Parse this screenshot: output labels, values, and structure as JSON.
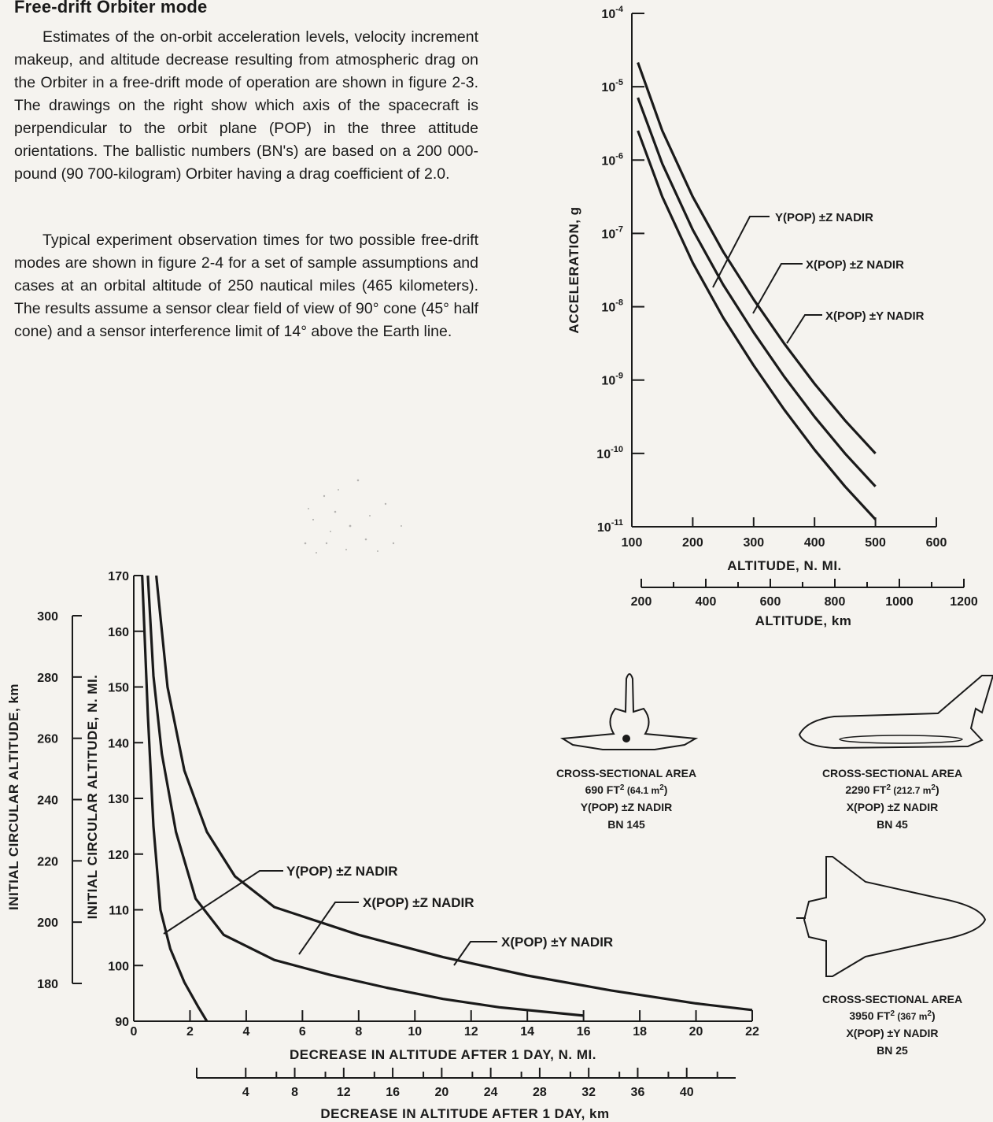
{
  "text": {
    "heading": "Free-drift Orbiter mode",
    "paragraph_1": "Estimates of the on-orbit acceleration levels, velocity increment makeup, and altitude decrease resulting from atmospheric drag on the Orbiter in a free-drift mode of operation are shown in figure 2-3. The drawings on the right show which axis of the spacecraft is perpendicular to the orbit plane (POP) in the three attitude orientations. The ballistic numbers (BN's) are based on a 200 000-pound (90 700-kilogram) Orbiter having a drag coefficient of 2.0.",
    "paragraph_2": "Typical experiment observation times for two possible free-drift modes are shown in figure 2-4 for a set of sample assumptions and cases at an orbital altitude of 250 nautical miles (465 kilometers). The results assume a sensor clear field of view of 90° cone (45° half cone) and a sensor interference limit of 14° above the Earth line."
  },
  "chart_data": [
    {
      "type": "line",
      "y_scale": "log",
      "ylabel": "ACCELERATION, g",
      "xlabel": "ALTITUDE, N. MI.",
      "x2label": "ALTITUDE, km",
      "xlim": [
        100,
        600
      ],
      "ylim_exponent": [
        -11,
        -4
      ],
      "x_ticks": [
        "100",
        "200",
        "300",
        "400",
        "500",
        "600"
      ],
      "x2_ticks": [
        "200",
        "400",
        "600",
        "800",
        "1000",
        "1200"
      ],
      "y_ticks": [
        {
          "base": "10",
          "exp": "-4"
        },
        {
          "base": "10",
          "exp": "-5"
        },
        {
          "base": "10",
          "exp": "-6"
        },
        {
          "base": "10",
          "exp": "-7"
        },
        {
          "base": "10",
          "exp": "-8"
        },
        {
          "base": "10",
          "exp": "-9"
        },
        {
          "base": "10",
          "exp": "-10"
        },
        {
          "base": "10",
          "exp": "-11"
        }
      ],
      "series": [
        {
          "name": "Y(POP) ±Z NADIR",
          "x": [
            110,
            150,
            200,
            250,
            300,
            350,
            400,
            450,
            500
          ],
          "log10_g": [
            -4.67,
            -5.6,
            -6.5,
            -7.25,
            -7.9,
            -8.5,
            -9.05,
            -9.55,
            -10.0
          ]
        },
        {
          "name": "X(POP) ±Z NADIR",
          "x": [
            110,
            150,
            200,
            250,
            300,
            350,
            400,
            450,
            500
          ],
          "log10_g": [
            -5.15,
            -6.05,
            -6.95,
            -7.7,
            -8.35,
            -8.95,
            -9.5,
            -10.0,
            -10.45
          ]
        },
        {
          "name": "X(POP) ±Y NADIR",
          "x": [
            110,
            150,
            200,
            250,
            300,
            350,
            400,
            450,
            500
          ],
          "log10_g": [
            -5.6,
            -6.5,
            -7.4,
            -8.15,
            -8.8,
            -9.4,
            -9.95,
            -10.45,
            -10.9
          ]
        }
      ]
    },
    {
      "type": "line",
      "ylabel": "INITIAL CIRCULAR ALTITUDE, N. MI.",
      "y2label": "INITIAL CIRCULAR ALTITUDE, km",
      "xlabel": "DECREASE IN ALTITUDE AFTER 1 DAY, N. MI.",
      "x2label": "DECREASE IN ALTITUDE AFTER 1 DAY, km",
      "xlim": [
        0,
        22
      ],
      "ylim": [
        90,
        170
      ],
      "x_ticks": [
        "0",
        "2",
        "4",
        "6",
        "8",
        "10",
        "12",
        "14",
        "16",
        "18",
        "20",
        "22"
      ],
      "y_ticks": [
        "90",
        "100",
        "110",
        "120",
        "130",
        "140",
        "150",
        "160",
        "170"
      ],
      "y2_ticks": [
        "180",
        "200",
        "220",
        "240",
        "260",
        "280",
        "300"
      ],
      "x2_ticks": [
        "4",
        "8",
        "12",
        "16",
        "20",
        "24",
        "28",
        "32",
        "36",
        "40"
      ],
      "series": [
        {
          "name": "X(POP) ±Y NADIR",
          "x": [
            0.8,
            1.2,
            1.8,
            2.6,
            3.6,
            5,
            8,
            11,
            14,
            17,
            20,
            22
          ],
          "y": [
            170,
            150,
            135,
            124,
            116,
            110.5,
            105.5,
            101.5,
            98.2,
            95.5,
            93.2,
            92
          ]
        },
        {
          "name": "X(POP) ±Z NADIR",
          "x": [
            0.5,
            0.7,
            1.0,
            1.5,
            2.2,
            3.2,
            5,
            7,
            9,
            11,
            13,
            16
          ],
          "y": [
            170,
            152,
            138,
            124,
            112,
            105.5,
            101,
            98.3,
            96,
            94,
            92.5,
            91
          ]
        },
        {
          "name": "Y(POP) ±Z NADIR",
          "x": [
            0.3,
            0.5,
            0.7,
            0.95,
            1.3,
            1.8,
            2.3,
            2.6
          ],
          "y": [
            170,
            145,
            125,
            110,
            103,
            97,
            92.5,
            90
          ]
        }
      ]
    }
  ],
  "figures": {
    "craft_1": {
      "line1": "CROSS-SECTIONAL AREA",
      "area": "690 FT",
      "area_sup": "2",
      "area_m": " (64.1 m",
      "area_m_sup": "2",
      "area_end": ")",
      "mode": "Y(POP) ±Z NADIR",
      "bn": "BN 145"
    },
    "craft_2": {
      "line1": "CROSS-SECTIONAL AREA",
      "area": "2290 FT",
      "area_sup": "2",
      "area_m": " (212.7 m",
      "area_m_sup": "2",
      "area_end": ")",
      "mode": "X(POP) ±Z NADIR",
      "bn": "BN 45"
    },
    "craft_3": {
      "line1": "CROSS-SECTIONAL AREA",
      "area": "3950 FT",
      "area_sup": "2",
      "area_m": " (367 m",
      "area_m_sup": "2",
      "area_end": ")",
      "mode": "X(POP) ±Y NADIR",
      "bn": "BN 25"
    }
  }
}
